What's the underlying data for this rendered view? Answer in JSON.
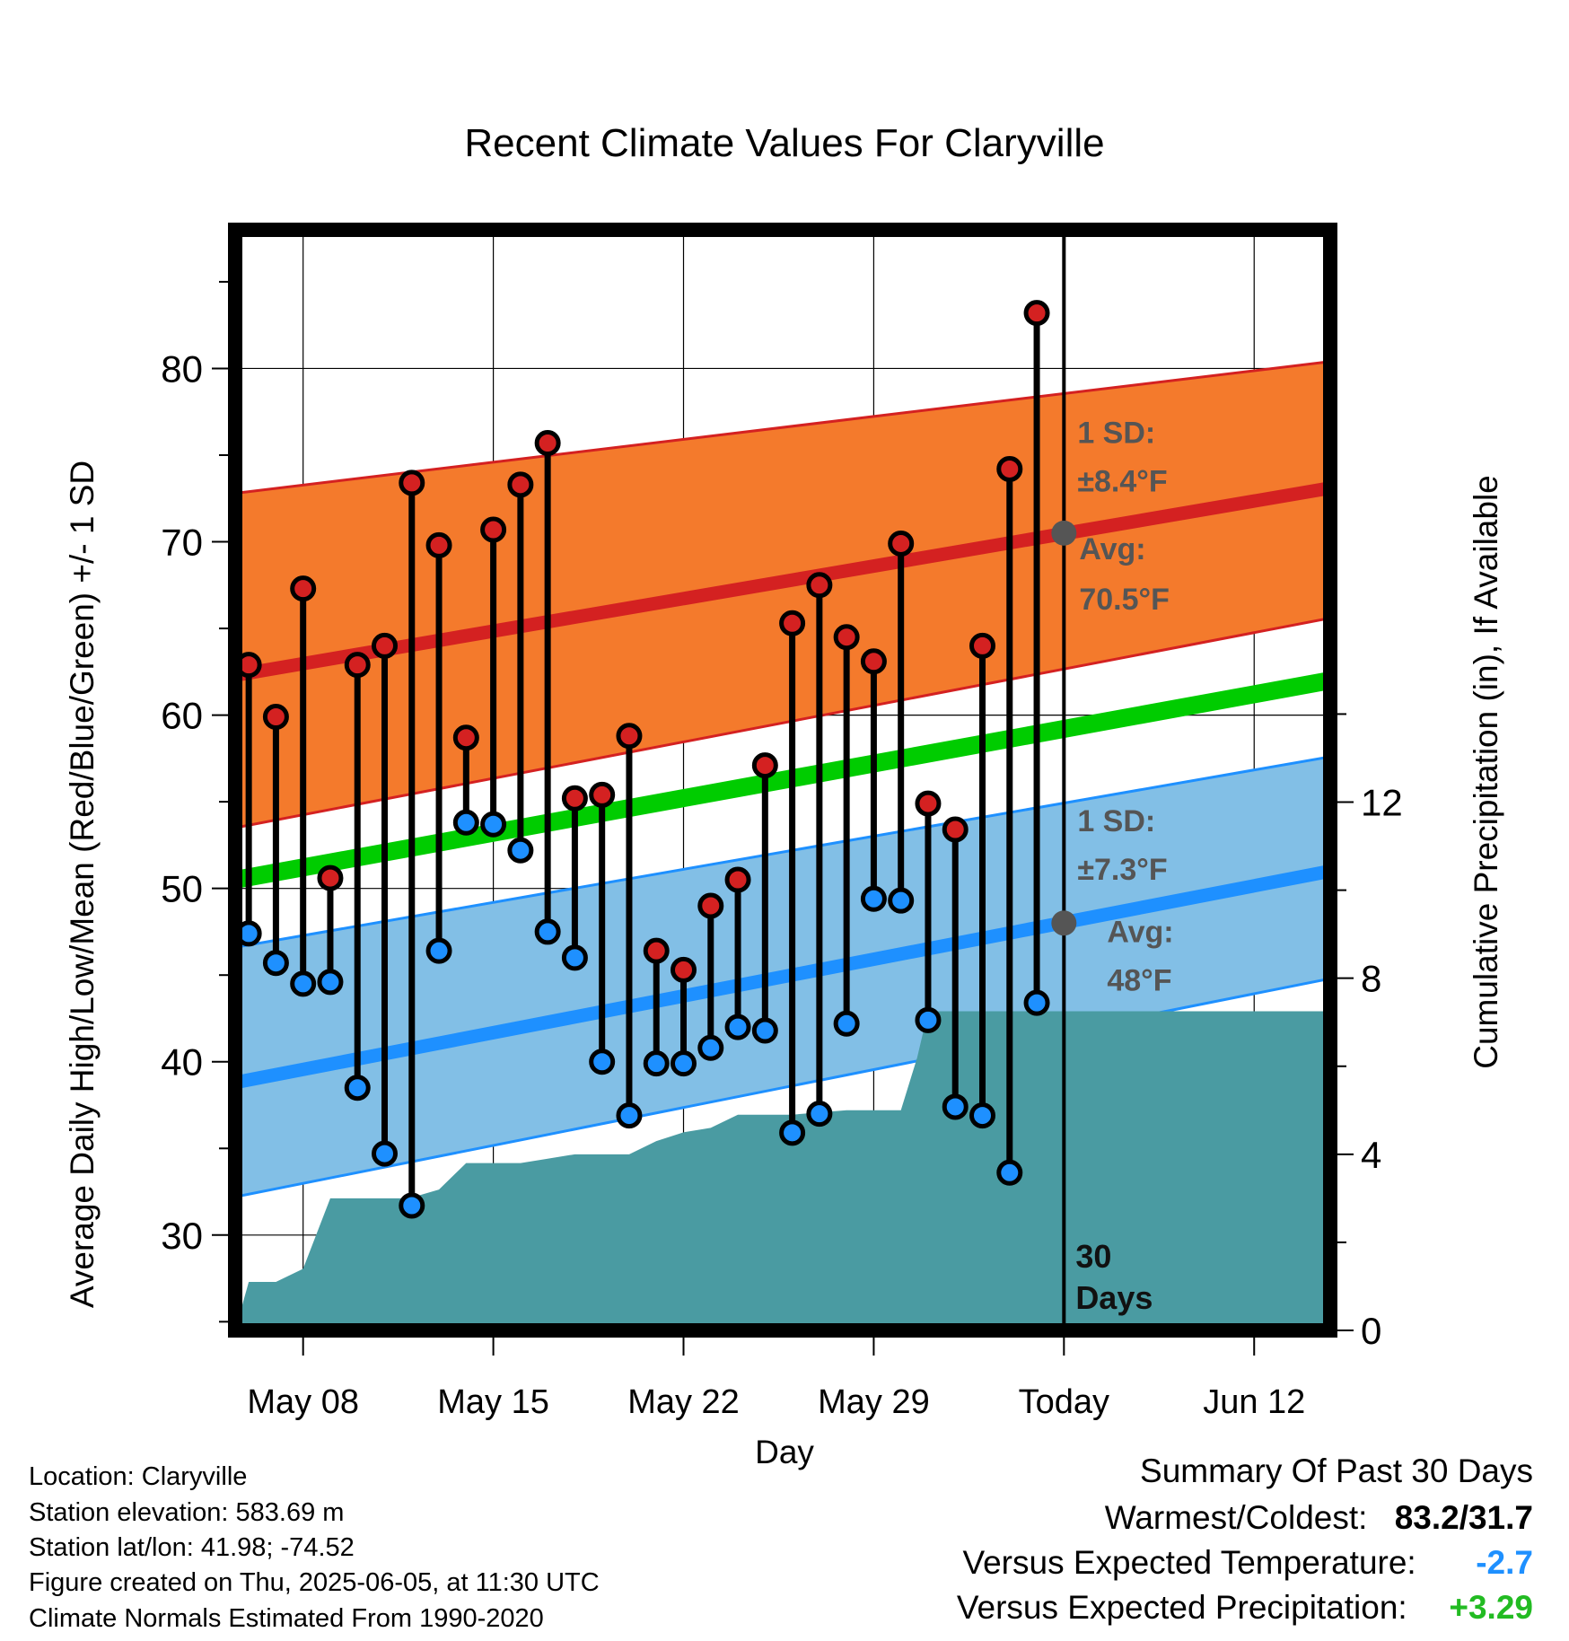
{
  "chart_data": {
    "type": "line",
    "title": "Recent Climate Values For Claryville",
    "xlabel": "Day",
    "ylabel": "Average Daily High/Low/Mean (Red/Blue/Green) +/- 1 SD",
    "y2label": "Cumulative Precipitation (in), If Available",
    "x_tick_labels": [
      "May 08",
      "May 15",
      "May 22",
      "May 29",
      "Today",
      "Jun 12"
    ],
    "x_tick_days": [
      2,
      9,
      16,
      23,
      30,
      37
    ],
    "xlim_days": [
      -0.5,
      39.8
    ],
    "ylim": [
      24.5,
      88
    ],
    "y_ticks": [
      30,
      40,
      50,
      60,
      70,
      80
    ],
    "y2lim": [
      0,
      25
    ],
    "y2_ticks": [
      0,
      4,
      8,
      12
    ],
    "grid": true,
    "colors": {
      "high": "#d42121",
      "low": "#1e90ff",
      "mean": "#00cc00",
      "high_band": "#f47a2c",
      "low_band": "#82bfe6",
      "precip": "#4a9ba2",
      "marker_ref": "#555555"
    },
    "normal_high": {
      "start": 62.3,
      "end": 73.1
    },
    "normal_low": {
      "start": 38.8,
      "end": 51.0
    },
    "normal_mean": {
      "start": 50.5,
      "end": 62.0
    },
    "high_band": {
      "upper_start": 72.8,
      "upper_end": 80.4,
      "lower_start": 53.5,
      "lower_end": 65.6
    },
    "low_band": {
      "upper_start": 46.6,
      "upper_end": 57.6,
      "lower_start": 32.2,
      "lower_end": 44.8
    },
    "days": [
      0,
      1,
      2,
      3,
      4,
      5,
      6,
      7,
      8,
      9,
      10,
      11,
      12,
      13,
      14,
      15,
      16,
      17,
      18,
      19,
      20,
      21,
      22,
      23,
      24,
      25,
      26,
      27,
      28,
      29
    ],
    "highs": [
      62.9,
      59.9,
      67.3,
      50.6,
      62.9,
      64.0,
      73.4,
      69.8,
      58.7,
      70.7,
      73.3,
      75.7,
      55.2,
      55.4,
      58.8,
      46.4,
      45.3,
      49.0,
      50.5,
      57.1,
      65.3,
      67.5,
      64.5,
      63.1,
      69.9,
      54.9,
      53.4,
      64.0,
      74.2,
      83.2
    ],
    "lows": [
      47.4,
      45.7,
      44.5,
      44.6,
      38.5,
      34.7,
      31.7,
      46.4,
      53.8,
      53.7,
      52.2,
      47.5,
      46.0,
      40.0,
      36.9,
      39.9,
      39.9,
      40.8,
      42.0,
      41.8,
      35.9,
      37.0,
      42.2,
      49.4,
      49.3,
      42.4,
      37.4,
      36.9,
      33.6,
      43.4
    ],
    "precip_cumulative": [
      [
        -0.5,
        0.0
      ],
      [
        0,
        1.1
      ],
      [
        1,
        1.1
      ],
      [
        2,
        1.4
      ],
      [
        3,
        3.0
      ],
      [
        5.9,
        3.0
      ],
      [
        7,
        3.2
      ],
      [
        8,
        3.8
      ],
      [
        10,
        3.8
      ],
      [
        11,
        3.9
      ],
      [
        12,
        4.0
      ],
      [
        14,
        4.0
      ],
      [
        15,
        4.3
      ],
      [
        16,
        4.5
      ],
      [
        17,
        4.6
      ],
      [
        18,
        4.9
      ],
      [
        20,
        4.9
      ],
      [
        22,
        5.0
      ],
      [
        24,
        5.0
      ],
      [
        24.6,
        6.2
      ],
      [
        25,
        7.25
      ],
      [
        39.8,
        7.25
      ]
    ],
    "today_day": 30,
    "today_label": "30 Days",
    "annotations": {
      "high_sd": "1 SD:",
      "high_sd_value": "±8.4°F",
      "high_avg": "Avg:",
      "high_avg_value": "70.5°F",
      "low_sd": "1 SD:",
      "low_sd_value": "±7.3°F",
      "low_avg": "Avg:",
      "low_avg_value": "48°F",
      "high_avg_number": 70.5,
      "low_avg_number": 48.0
    }
  },
  "meta": {
    "location": "Location: Claryville",
    "elevation": "Station elevation: 583.69 m",
    "latlon": "Station lat/lon: 41.98; -74.52",
    "created": "Figure created on Thu, 2025-06-05, at 11:30 UTC",
    "normals": "Climate Normals Estimated From 1990-2020"
  },
  "summary": {
    "title": "Summary Of Past 30 Days",
    "warmest_coldest_label": "Warmest/Coldest:",
    "warmest_coldest_value": "83.2/31.7",
    "temp_label": "Versus Expected Temperature:",
    "temp_value": "-2.7",
    "temp_color": "#1e90ff",
    "precip_label": "Versus Expected Precipitation:",
    "precip_value": "+3.29",
    "precip_color": "#22bb22"
  }
}
